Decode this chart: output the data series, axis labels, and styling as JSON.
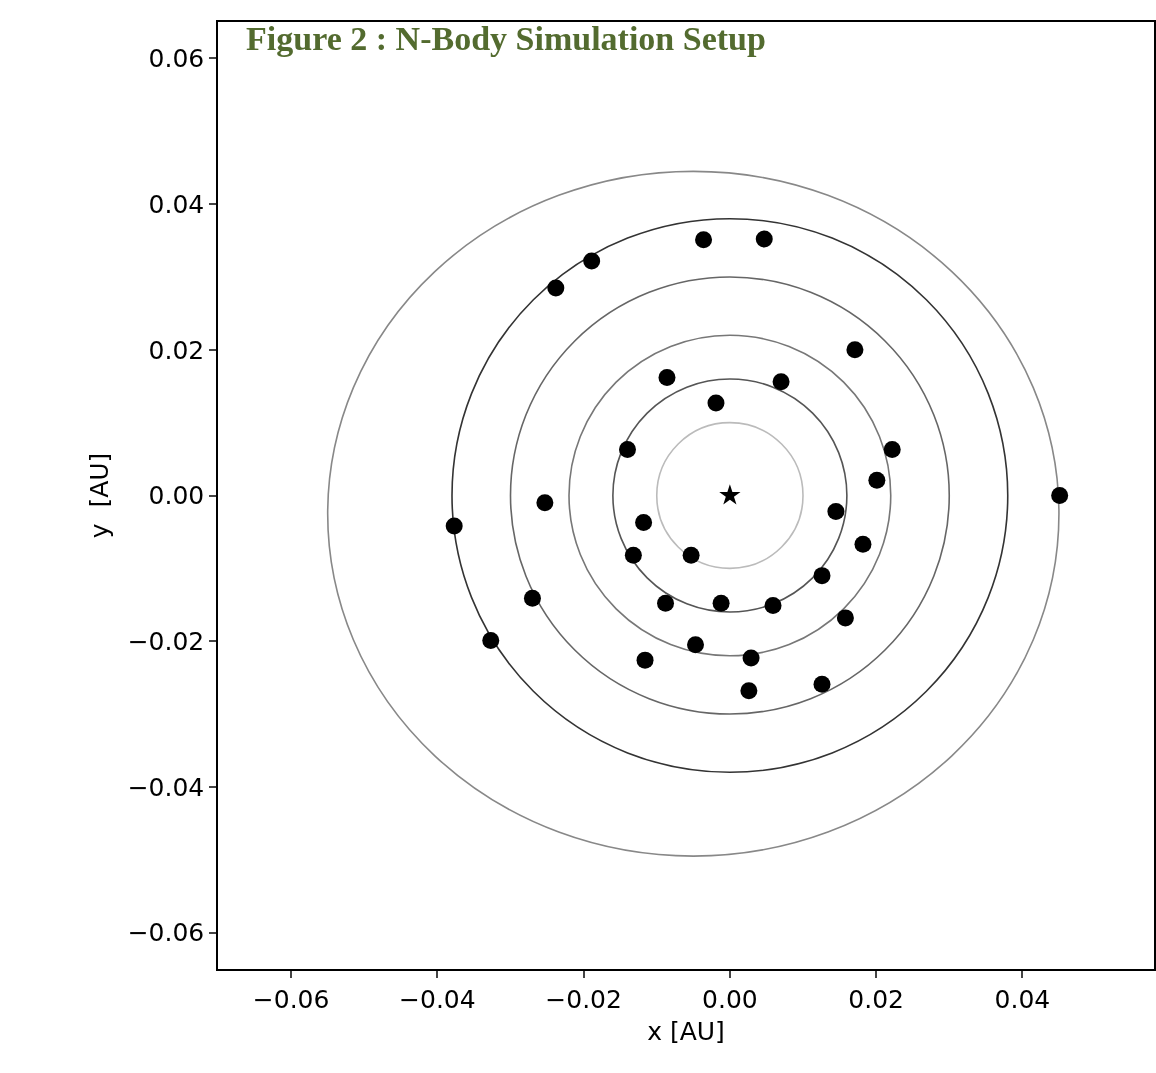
{
  "chart_data": {
    "type": "scatter",
    "title": "Figure 2 : N-Body Simulation Setup",
    "xlabel": "x [AU]",
    "ylabel": "y  [AU]",
    "xlim": [
      -0.07,
      0.058
    ],
    "ylim": [
      -0.065,
      0.065
    ],
    "xticks": [
      {
        "value": -0.06,
        "label": "−0.06"
      },
      {
        "value": -0.04,
        "label": "−0.04"
      },
      {
        "value": -0.02,
        "label": "−0.02"
      },
      {
        "value": 0,
        "label": "0.00"
      },
      {
        "value": 0.02,
        "label": "0.02"
      },
      {
        "value": 0.04,
        "label": "0.04"
      }
    ],
    "yticks": [
      {
        "value": -0.06,
        "label": "−0.06"
      },
      {
        "value": -0.04,
        "label": "−0.04"
      },
      {
        "value": -0.02,
        "label": "−0.02"
      },
      {
        "value": 0,
        "label": "0.00"
      },
      {
        "value": 0.02,
        "label": "0.02"
      },
      {
        "value": 0.04,
        "label": "0.04"
      },
      {
        "value": 0.06,
        "label": "0.06"
      }
    ],
    "grid": false,
    "series": [
      {
        "color": "#000000",
        "marker": "circle",
        "x": [
          0.0451,
          0.0047,
          -0.0036,
          -0.0189,
          -0.0238,
          0.0171,
          -0.0086,
          0.007,
          -0.0019,
          -0.014,
          0.0222,
          0.0201,
          -0.0253,
          -0.0377,
          0.0145,
          -0.0118,
          -0.0132,
          -0.0053,
          0.0182,
          0.0126,
          -0.027,
          -0.0088,
          -0.0012,
          0.0059,
          0.0158,
          -0.0327,
          -0.0047,
          -0.0116,
          0.0029,
          0.0026,
          0.0126
        ],
        "values": [
          0.0,
          0.0352,
          0.0351,
          0.0322,
          0.0285,
          0.02,
          0.0162,
          0.0156,
          0.0127,
          0.0063,
          0.0063,
          0.0021,
          -0.001,
          -0.0042,
          -0.0022,
          -0.0037,
          -0.0082,
          -0.0082,
          -0.0067,
          -0.011,
          -0.0141,
          -0.0148,
          -0.0148,
          -0.0151,
          -0.0168,
          -0.0199,
          -0.0205,
          -0.0226,
          -0.0223,
          -0.0268,
          -0.0259
        ]
      },
      {
        "color": "#000000",
        "marker": "star",
        "x": [
          0
        ],
        "values": [
          0
        ]
      }
    ]
  }
}
